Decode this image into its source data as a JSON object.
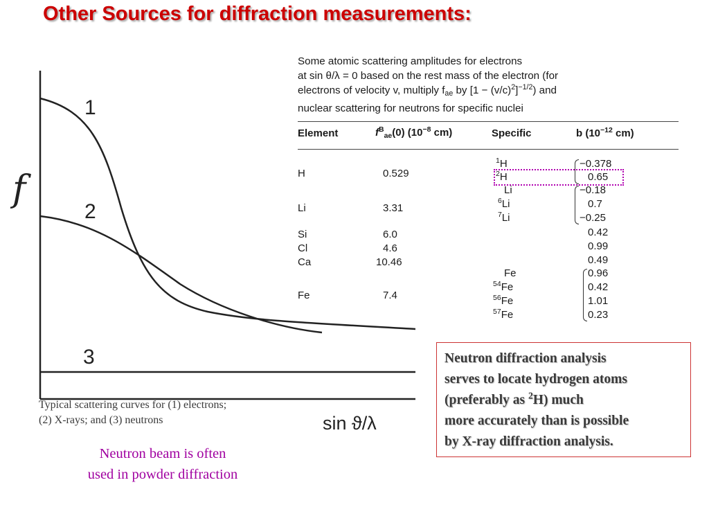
{
  "title": "Other Sources for diffraction measurements:",
  "plot": {
    "y_label": "f",
    "x_label": "sin ϑ/λ",
    "curve_labels": [
      "1",
      "2",
      "3"
    ]
  },
  "caption": [
    "Typical scattering curves for (1) electrons;",
    "(2) X-rays; and (3) neutrons"
  ],
  "neutron_note": [
    "Neutron beam is often",
    "used in powder diffraction"
  ],
  "table": {
    "intro": [
      "Some atomic scattering amplitudes for electrons",
      "at sin θ/λ = 0 based on the rest mass of the electron (for",
      "electrons of velocity v, multiply f",
      "ae",
      " by [1 − (v/c)",
      "2",
      "]",
      "−1/2",
      ") and",
      "nuclear scattering for neutrons for specific nuclei"
    ],
    "headers": {
      "element": "Element",
      "fae_main": "f",
      "fae_sup": "B",
      "fae_sub": "ae",
      "fae_rest": "(0) (10",
      "fae_exp": "−8",
      "fae_unit": " cm)",
      "specific": "Specific",
      "b_main": "b (10",
      "b_exp": "−12",
      "b_unit": " cm)"
    },
    "elements": [
      {
        "name": "H",
        "fae": "0.529"
      },
      {
        "name": "Li",
        "fae": "3.31"
      },
      {
        "name": "Si",
        "fae": "6.0"
      },
      {
        "name": "Cl",
        "fae": "4.6"
      },
      {
        "name": "Ca",
        "fae": "10.46"
      },
      {
        "name": "Fe",
        "fae": "7.4"
      }
    ],
    "specific": [
      {
        "mass": "1",
        "symbol": "H",
        "b": "−0.378"
      },
      {
        "mass": "2",
        "symbol": "H",
        "b": "0.65"
      },
      {
        "mass": "",
        "symbol": "Li",
        "b": "−0.18"
      },
      {
        "mass": "6",
        "symbol": "Li",
        "b": "0.7"
      },
      {
        "mass": "7",
        "symbol": "Li",
        "b": "−0.25"
      },
      {
        "mass": "",
        "symbol": "",
        "b": "0.42"
      },
      {
        "mass": "",
        "symbol": "",
        "b": "0.99"
      },
      {
        "mass": "",
        "symbol": "",
        "b": "0.49"
      },
      {
        "mass": "",
        "symbol": "Fe",
        "b": "0.96"
      },
      {
        "mass": "54",
        "symbol": "Fe",
        "b": "0.42"
      },
      {
        "mass": "56",
        "symbol": "Fe",
        "b": "1.01"
      },
      {
        "mass": "57",
        "symbol": "Fe",
        "b": "0.23"
      }
    ]
  },
  "callout": {
    "line1": "Neutron diffraction analysis",
    "line2": "serves to locate hydrogen atoms",
    "line3_pre": "(preferably as ",
    "line3_sup": "2",
    "line3_post": "H) much",
    "line4": "more accurately than is possible",
    "line5": "by X-ray diffraction analysis."
  },
  "colors": {
    "title": "#cc0000",
    "neutron_note": "#a000a0",
    "callout_border": "#cc3333",
    "highlight_dots": "#b000b0"
  }
}
